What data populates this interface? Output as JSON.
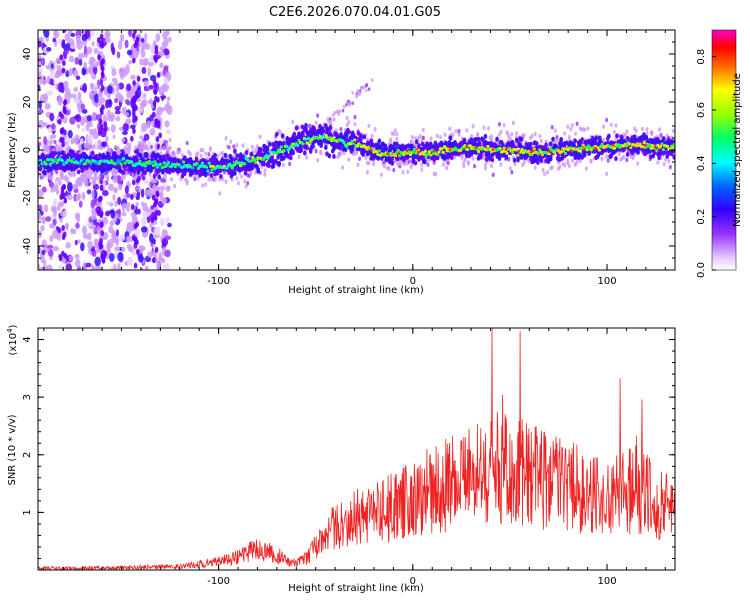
{
  "title": "C2E6.2026.070.04.01.G05",
  "colors": {
    "snr_line": "#ee2222",
    "axis": "#000000",
    "background": "#ffffff"
  },
  "chart_data": [
    {
      "type": "heatmap",
      "xlabel": "Height of straight line (km)",
      "ylabel": "Frequency (Hz)",
      "xlim": [
        -193,
        135
      ],
      "ylim": [
        -50,
        50
      ],
      "xticks": [
        -100,
        0,
        100
      ],
      "xtick_labels": [
        "-100",
        "0",
        "100"
      ],
      "yticks": [
        -40,
        -20,
        0,
        20,
        40
      ],
      "ytick_labels": [
        "-40",
        "-20",
        "0",
        "20",
        "40"
      ],
      "colorbar": {
        "label": "Normalized spectral amplitude",
        "range": [
          0,
          0.9
        ],
        "ticks": [
          0.0,
          0.2,
          0.4,
          0.6,
          0.8
        ],
        "tick_labels": [
          "0.0",
          "0.2",
          "0.4",
          "0.6",
          "0.8"
        ],
        "colormap": "rainbow (violet-blue-cyan-green-yellow-red-magenta)"
      },
      "ridge": {
        "name": "Doppler frequency ridge (approx.)",
        "x": [
          -193,
          -170,
          -150,
          -130,
          -110,
          -100,
          -90,
          -80,
          -70,
          -60,
          -50,
          -45,
          -40,
          -35,
          -30,
          -25,
          -20,
          -10,
          0,
          10,
          20,
          30,
          40,
          50,
          60,
          70,
          80,
          90,
          100,
          110,
          120,
          135
        ],
        "y": [
          -5,
          -5,
          -5,
          -6,
          -7,
          -7,
          -6,
          -4,
          -1,
          3,
          5,
          6,
          4,
          3,
          3,
          2,
          -1,
          -2,
          -1,
          -1,
          0,
          1,
          0,
          0,
          -1,
          -1,
          0,
          1,
          1,
          2,
          2,
          1
        ]
      },
      "noise_region_x": [
        -193,
        -125
      ]
    },
    {
      "type": "line",
      "xlabel": "Height of straight line (km)",
      "ylabel": "SNR (10 * v/v)",
      "y_multiplier_label": "(x10",
      "y_multiplier_exp": "4",
      "y_multiplier_close": ")",
      "xlim": [
        -193,
        135
      ],
      "ylim": [
        0,
        4.2
      ],
      "xticks": [
        -100,
        0,
        100
      ],
      "xtick_labels": [
        "-100",
        "0",
        "100"
      ],
      "yticks": [
        1,
        2,
        3,
        4
      ],
      "ytick_labels": [
        "1",
        "2",
        "3",
        "4"
      ],
      "series": [
        {
          "name": "SNR",
          "x": [
            -193,
            -150,
            -120,
            -105,
            -95,
            -90,
            -85,
            -80,
            -75,
            -70,
            -65,
            -60,
            -55,
            -50,
            -45,
            -40,
            -35,
            -30,
            -25,
            -20,
            -15,
            -10,
            -5,
            0,
            5,
            10,
            15,
            20,
            25,
            30,
            35,
            40,
            45,
            50,
            55,
            60,
            65,
            70,
            75,
            80,
            85,
            90,
            95,
            100,
            105,
            110,
            115,
            120,
            125,
            130,
            135
          ],
          "values": [
            0.03,
            0.04,
            0.06,
            0.12,
            0.18,
            0.22,
            0.3,
            0.35,
            0.3,
            0.28,
            0.15,
            0.12,
            0.2,
            0.4,
            0.6,
            0.75,
            0.85,
            0.9,
            0.95,
            1.0,
            1.05,
            1.1,
            1.2,
            1.3,
            1.35,
            1.4,
            1.45,
            1.5,
            1.55,
            1.6,
            1.7,
            1.75,
            1.8,
            1.75,
            1.7,
            1.65,
            1.6,
            1.55,
            1.5,
            1.45,
            1.4,
            1.35,
            1.3,
            1.25,
            1.3,
            1.35,
            1.4,
            1.3,
            1.2,
            1.1,
            1.0
          ]
        }
      ]
    }
  ]
}
